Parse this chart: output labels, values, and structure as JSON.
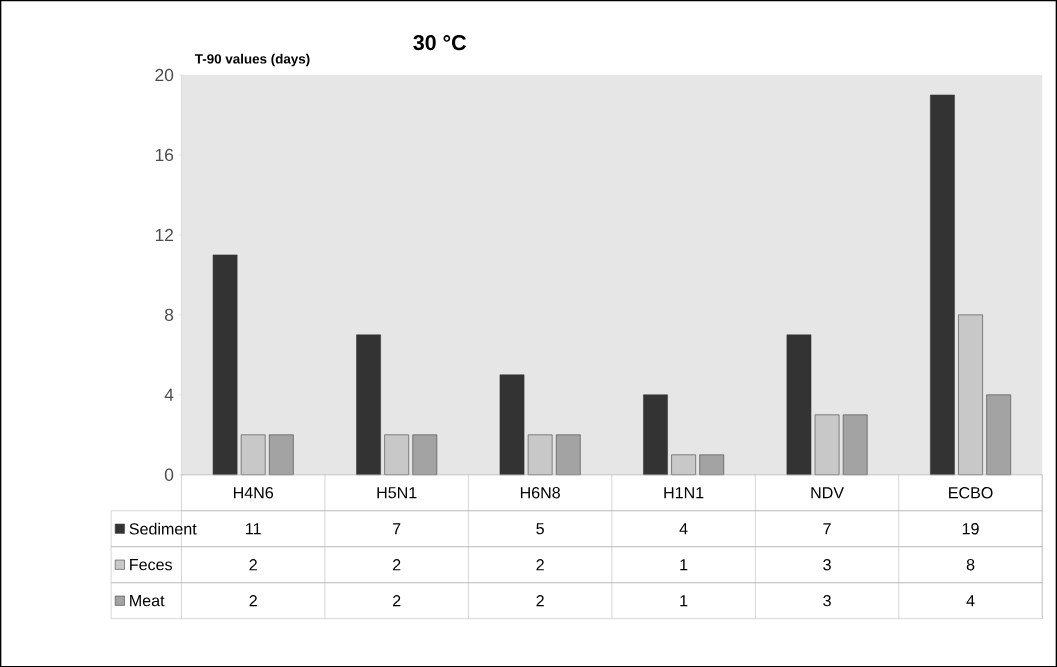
{
  "chart_data": {
    "type": "bar",
    "title": "30 °C",
    "ylabel": "T-90 values (days)",
    "categories": [
      "H4N6",
      "H5N1",
      "H6N8",
      "H1N1",
      "NDV",
      "ECBO"
    ],
    "series": [
      {
        "name": "Sediment",
        "color": "#333333",
        "values": [
          11,
          7,
          5,
          4,
          7,
          19
        ]
      },
      {
        "name": "Feces",
        "color": "#c8c8c8",
        "values": [
          2,
          2,
          2,
          1,
          3,
          8
        ]
      },
      {
        "name": "Meat",
        "color": "#a3a3a3",
        "values": [
          2,
          2,
          2,
          1,
          3,
          4
        ]
      }
    ],
    "ylim": [
      0,
      20
    ],
    "yticks": [
      0,
      4,
      8,
      12,
      16,
      20
    ],
    "data_labels": true,
    "legend": "bottom left"
  }
}
